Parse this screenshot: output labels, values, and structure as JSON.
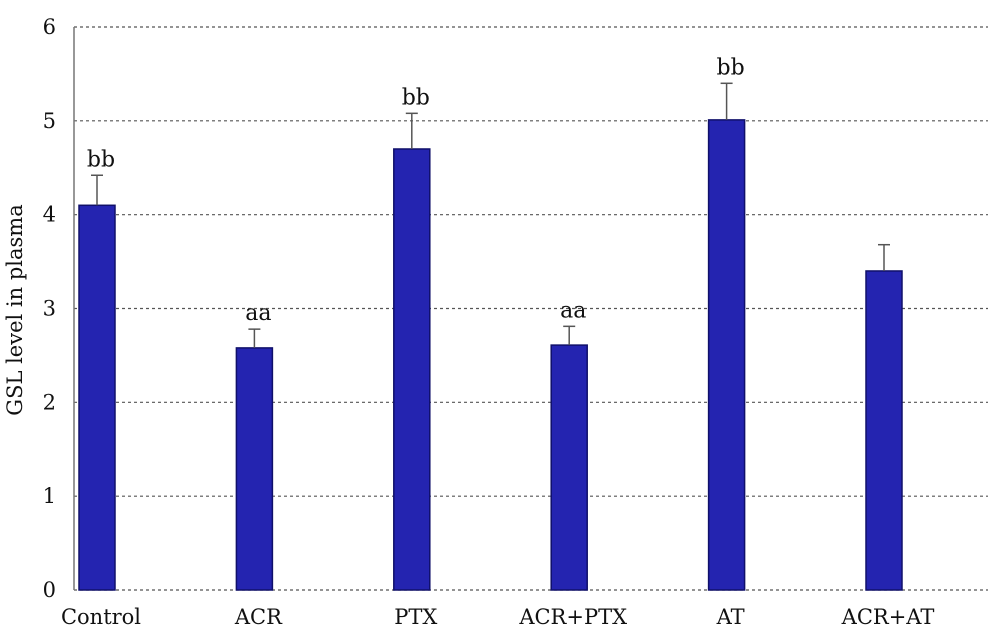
{
  "chart_data": {
    "type": "bar",
    "title": "",
    "xlabel": "",
    "ylabel": "GSL level in plasma",
    "ylim": [
      0,
      6
    ],
    "yticks": [
      0,
      1,
      2,
      3,
      4,
      5,
      6
    ],
    "grid": true,
    "categories": [
      "Control",
      "ACR",
      "PTX",
      "ACR+PTX",
      "AT",
      "ACR+AT"
    ],
    "values": [
      4.1,
      2.58,
      4.7,
      2.61,
      5.01,
      3.4
    ],
    "errors": [
      0.32,
      0.2,
      0.38,
      0.2,
      0.39,
      0.28
    ],
    "annotations": [
      "bb",
      "aa",
      "bb",
      "aa",
      "bb",
      ""
    ],
    "colors": {
      "bar": "#2424b0",
      "bar_edge": "#10106a",
      "error_bar": "#555555",
      "grid": "#555555"
    }
  }
}
